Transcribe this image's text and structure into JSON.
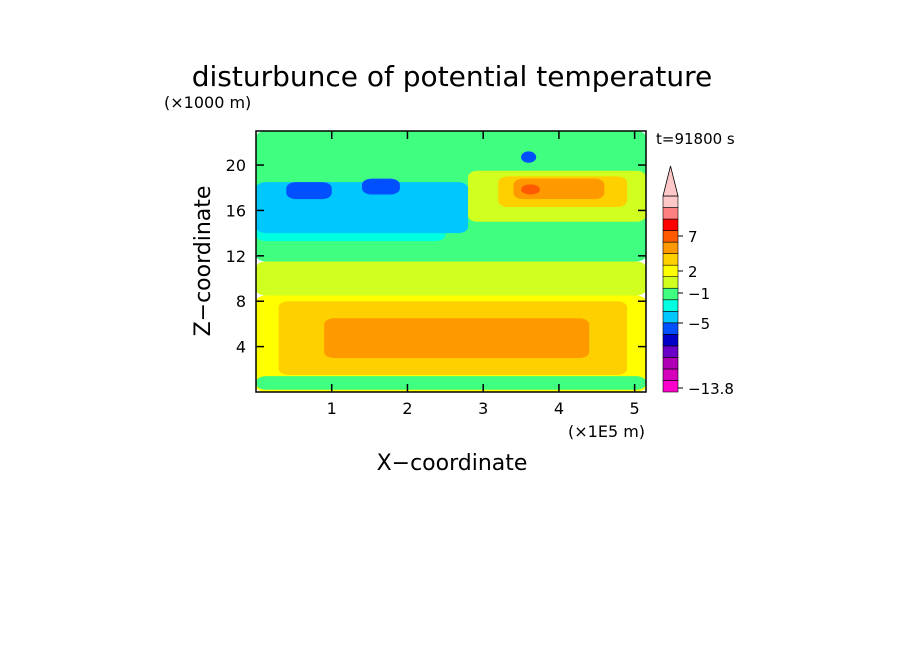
{
  "chart_data": {
    "type": "heatmap",
    "title": "disturbunce of potential temperature",
    "y_unit_label": "(×1000 m)",
    "x_unit_label": "(×1E5 m)",
    "xlabel": "X−coordinate",
    "ylabel": "Z−coordinate",
    "time_label": "t=91800 s",
    "xlim": [
      0,
      5.15
    ],
    "ylim": [
      0,
      23
    ],
    "x_ticks": [
      1,
      2,
      3,
      4,
      5
    ],
    "y_ticks": [
      4,
      8,
      12,
      16,
      20
    ],
    "colorbar": {
      "tick_labels": [
        "7",
        "2",
        "−1",
        "−5",
        "−13.8"
      ],
      "colors": [
        "#ff00cc",
        "#d400bb",
        "#b000b5",
        "#6a00c8",
        "#0000c8",
        "#0050ff",
        "#00c8ff",
        "#00ffe0",
        "#40ff80",
        "#d0ff20",
        "#ffff00",
        "#ffd000",
        "#ff9900",
        "#ff5a00",
        "#ff0000",
        "#ff8080",
        "#ffc8c8"
      ]
    },
    "regions": [
      {
        "level": 1,
        "x": 0.0,
        "z": 11.5,
        "w": 5.15,
        "h": 11.5
      },
      {
        "level": 2,
        "x": 0.0,
        "z": 8.5,
        "w": 5.15,
        "h": 3.0
      },
      {
        "level": 3,
        "x": 0.0,
        "z": 0.0,
        "w": 5.15,
        "h": 8.5
      },
      {
        "level": 4,
        "x": 0.3,
        "z": 1.5,
        "w": 4.6,
        "h": 6.5
      },
      {
        "level": 5,
        "x": 0.9,
        "z": 3.0,
        "w": 3.5,
        "h": 3.5
      },
      {
        "level": 0,
        "x": 0.0,
        "z": 13.3,
        "w": 2.5,
        "h": 2.5
      },
      {
        "level": -1,
        "x": 0.0,
        "z": 14.0,
        "w": 2.8,
        "h": 4.5
      },
      {
        "level": -2,
        "x": 0.4,
        "z": 17.0,
        "w": 0.6,
        "h": 1.5
      },
      {
        "level": -2,
        "x": 1.4,
        "z": 17.4,
        "w": 0.5,
        "h": 1.4
      },
      {
        "level": -2,
        "x": 3.5,
        "z": 20.2,
        "w": 0.2,
        "h": 1.0
      },
      {
        "level": 2,
        "x": 2.8,
        "z": 15.0,
        "w": 2.35,
        "h": 4.5
      },
      {
        "level": 4,
        "x": 3.2,
        "z": 16.3,
        "w": 1.7,
        "h": 2.7
      },
      {
        "level": 5,
        "x": 3.4,
        "z": 17.0,
        "w": 1.2,
        "h": 1.8
      },
      {
        "level": 6,
        "x": 3.5,
        "z": 17.4,
        "w": 0.25,
        "h": 0.9
      },
      {
        "level": 1,
        "x": 0.6,
        "z": 20.0,
        "w": 1.4,
        "h": 1.5
      },
      {
        "level": 1,
        "x": 0.0,
        "z": 0.2,
        "w": 5.15,
        "h": 1.2
      }
    ]
  }
}
